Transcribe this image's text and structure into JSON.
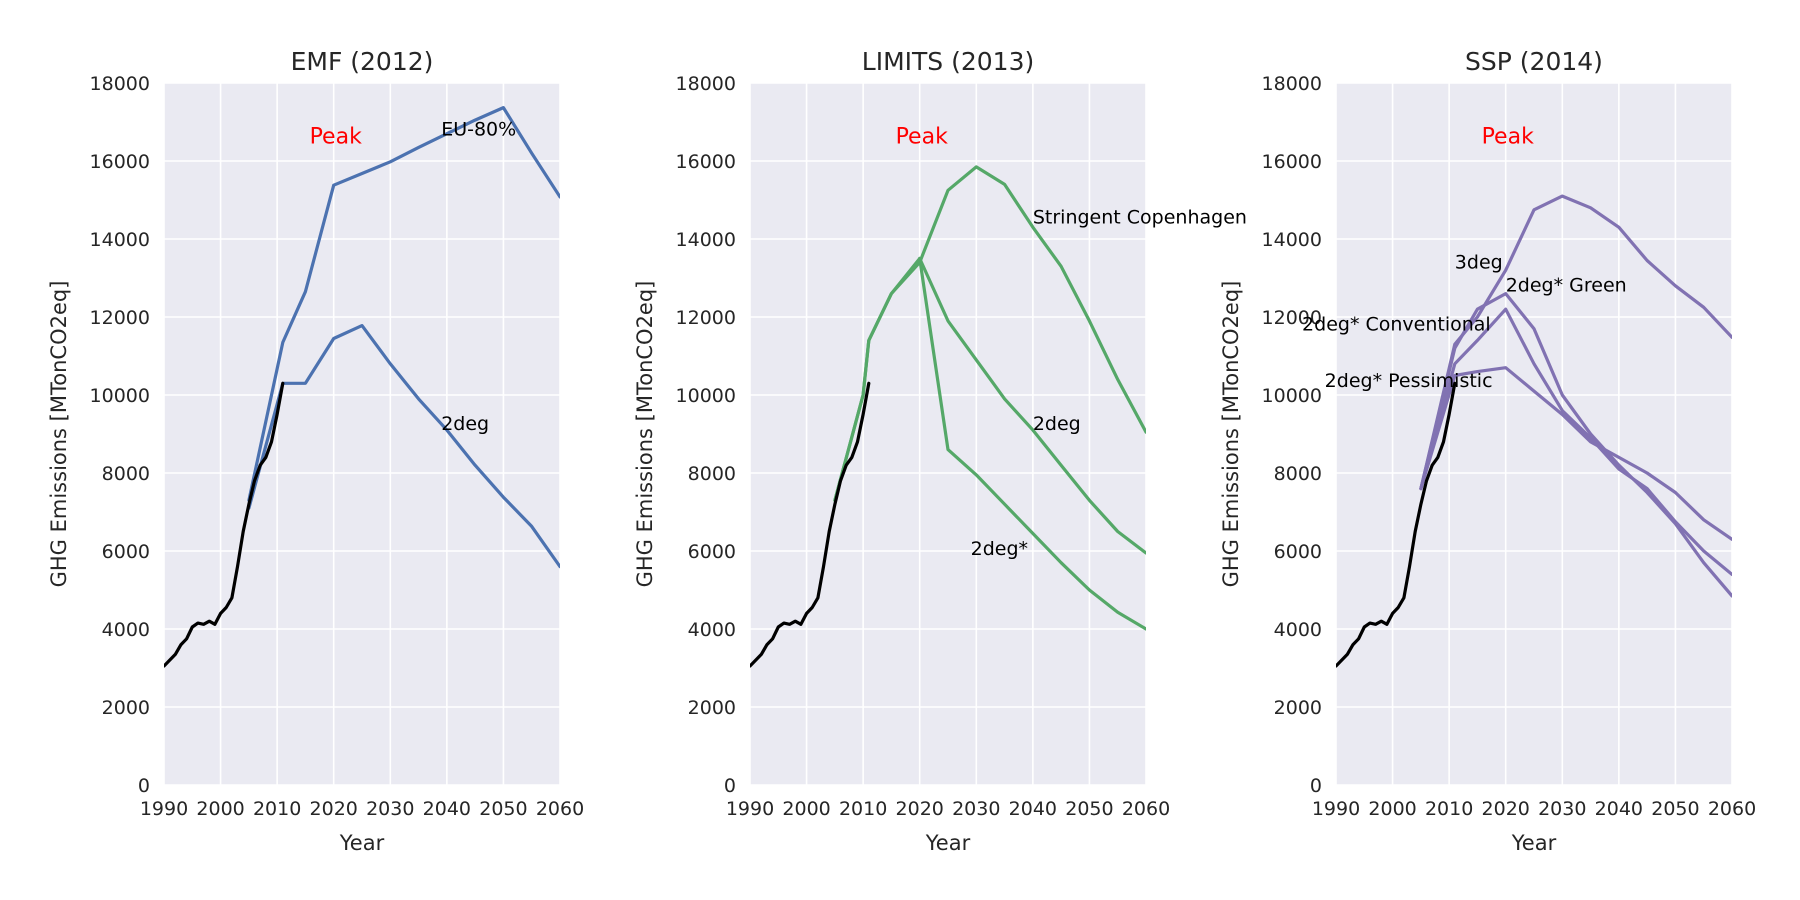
{
  "chart_data": [
    {
      "type": "line",
      "title": "EMF (2012)",
      "xlabel": "Year",
      "ylabel": "GHG Emissions [MTonCO2eq]",
      "xlim": [
        1990,
        2060
      ],
      "ylim": [
        0,
        18000
      ],
      "xticks": [
        "1990",
        "2000",
        "2010",
        "2020",
        "2030",
        "2040",
        "2050",
        "2060"
      ],
      "yticks": [
        "0",
        "2000",
        "4000",
        "6000",
        "8000",
        "10000",
        "12000",
        "14000",
        "16000",
        "18000"
      ],
      "grid": true,
      "color": "#4c72b0",
      "peak_label": "Peak",
      "series": [
        {
          "name": "EU-80%",
          "x": [
            2005,
            2011,
            2015,
            2020,
            2025,
            2030,
            2035,
            2040,
            2045,
            2050,
            2055,
            2060
          ],
          "y": [
            7300,
            11350,
            12650,
            15380,
            15680,
            15980,
            16350,
            16700,
            17050,
            17370,
            16200,
            15080
          ]
        },
        {
          "name": "2deg",
          "x": [
            2005,
            2011,
            2015,
            2020,
            2025,
            2030,
            2035,
            2040,
            2045,
            2050,
            2055,
            2060
          ],
          "y": [
            7100,
            10300,
            10300,
            11450,
            11780,
            10800,
            9900,
            9100,
            8200,
            7380,
            6630,
            5600
          ]
        }
      ],
      "historical": {
        "x": [
          1990,
          1992,
          1993,
          1994,
          1995,
          1996,
          1997,
          1998,
          1999,
          2000,
          2001,
          2002,
          2003,
          2004,
          2005,
          2006,
          2007,
          2008,
          2009,
          2010,
          2011
        ],
        "y": [
          3050,
          3350,
          3600,
          3750,
          4050,
          4150,
          4120,
          4200,
          4120,
          4400,
          4550,
          4800,
          5600,
          6500,
          7200,
          7800,
          8200,
          8400,
          8800,
          9500,
          10300
        ]
      },
      "annotations": [
        {
          "text": "EU-80%",
          "x": 2039,
          "y": 16650
        },
        {
          "text": "2deg",
          "x": 2039,
          "y": 9100
        }
      ]
    },
    {
      "type": "line",
      "title": "LIMITS (2013)",
      "xlabel": "Year",
      "ylabel": "GHG Emissions [MTonCO2eq]",
      "xlim": [
        1990,
        2060
      ],
      "ylim": [
        0,
        18000
      ],
      "xticks": [
        "1990",
        "2000",
        "2010",
        "2020",
        "2030",
        "2040",
        "2050",
        "2060"
      ],
      "yticks": [
        "0",
        "2000",
        "4000",
        "6000",
        "8000",
        "10000",
        "12000",
        "14000",
        "16000",
        "18000"
      ],
      "grid": true,
      "color": "#55a868",
      "peak_label": "Peak",
      "series": [
        {
          "name": "Stringent Copenhagen",
          "x": [
            2005,
            2010,
            2011,
            2015,
            2020,
            2025,
            2030,
            2035,
            2040,
            2045,
            2050,
            2055,
            2060
          ],
          "y": [
            7300,
            10000,
            11400,
            12600,
            13400,
            15250,
            15850,
            15400,
            14300,
            13300,
            11900,
            10400,
            9050
          ]
        },
        {
          "name": "2deg",
          "x": [
            2005,
            2010,
            2011,
            2015,
            2020,
            2025,
            2030,
            2035,
            2040,
            2045,
            2050,
            2055,
            2060
          ],
          "y": [
            7300,
            10000,
            11400,
            12600,
            13500,
            11900,
            10900,
            9900,
            9100,
            8200,
            7300,
            6500,
            5950
          ]
        },
        {
          "name": "2deg*",
          "x": [
            2020,
            2025,
            2030,
            2035,
            2040,
            2045,
            2050,
            2055,
            2060
          ],
          "y": [
            13500,
            8600,
            7950,
            7200,
            6450,
            5700,
            5000,
            4430,
            4000
          ]
        }
      ],
      "historical": {
        "x": [
          1990,
          1992,
          1993,
          1994,
          1995,
          1996,
          1997,
          1998,
          1999,
          2000,
          2001,
          2002,
          2003,
          2004,
          2005,
          2006,
          2007,
          2008,
          2009,
          2010,
          2011
        ],
        "y": [
          3050,
          3350,
          3600,
          3750,
          4050,
          4150,
          4120,
          4200,
          4120,
          4400,
          4550,
          4800,
          5600,
          6500,
          7200,
          7800,
          8200,
          8400,
          8800,
          9500,
          10300
        ]
      },
      "annotations": [
        {
          "text": "Stringent Copenhagen",
          "x": 2040,
          "y": 14400
        },
        {
          "text": "2deg",
          "x": 2040,
          "y": 9100
        },
        {
          "text": "2deg*",
          "x": 2029,
          "y": 5900
        }
      ]
    },
    {
      "type": "line",
      "title": "SSP (2014)",
      "xlabel": "Year",
      "ylabel": "GHG Emissions [MTonCO2eq]",
      "xlim": [
        1990,
        2060
      ],
      "ylim": [
        0,
        18000
      ],
      "xticks": [
        "1990",
        "2000",
        "2010",
        "2020",
        "2030",
        "2040",
        "2050",
        "2060"
      ],
      "yticks": [
        "0",
        "2000",
        "4000",
        "6000",
        "8000",
        "10000",
        "12000",
        "14000",
        "16000",
        "18000"
      ],
      "grid": true,
      "color": "#8172b2",
      "peak_label": "Peak",
      "series": [
        {
          "name": "3deg",
          "x": [
            2005,
            2011,
            2015,
            2020,
            2025,
            2030,
            2035,
            2040,
            2045,
            2050,
            2055,
            2060
          ],
          "y": [
            7600,
            11300,
            12000,
            13200,
            14750,
            15100,
            14800,
            14300,
            13450,
            12800,
            12250,
            11480
          ]
        },
        {
          "name": "2deg* Green",
          "x": [
            2005,
            2011,
            2015,
            2020,
            2025,
            2030,
            2035,
            2040,
            2045,
            2050,
            2055,
            2060
          ],
          "y": [
            7600,
            11200,
            12200,
            12600,
            11700,
            10000,
            9000,
            8200,
            7500,
            6700,
            5700,
            4850
          ]
        },
        {
          "name": "2deg* Conventional",
          "x": [
            2005,
            2011,
            2015,
            2020,
            2025,
            2030,
            2035,
            2040,
            2045,
            2050,
            2055,
            2060
          ],
          "y": [
            7600,
            10800,
            11400,
            12200,
            10800,
            9600,
            8900,
            8100,
            7600,
            6750,
            6000,
            5400
          ]
        },
        {
          "name": "2deg* Pessimistic",
          "x": [
            2005,
            2011,
            2015,
            2020,
            2025,
            2030,
            2035,
            2040,
            2045,
            2050,
            2055,
            2060
          ],
          "y": [
            7600,
            10500,
            10600,
            10700,
            10100,
            9500,
            8800,
            8400,
            8000,
            7500,
            6800,
            6300
          ]
        }
      ],
      "historical": {
        "x": [
          1990,
          1992,
          1993,
          1994,
          1995,
          1996,
          1997,
          1998,
          1999,
          2000,
          2001,
          2002,
          2003,
          2004,
          2005,
          2006,
          2007,
          2008,
          2009,
          2010,
          2011
        ],
        "y": [
          3050,
          3350,
          3600,
          3750,
          4050,
          4150,
          4120,
          4200,
          4120,
          4400,
          4550,
          4800,
          5600,
          6500,
          7200,
          7800,
          8200,
          8400,
          8800,
          9500,
          10300
        ]
      },
      "annotations": [
        {
          "text": "3deg",
          "x": 2011,
          "y": 13250
        },
        {
          "text": "2deg* Green",
          "x": 2020,
          "y": 12650
        },
        {
          "text": "2deg* Conventional",
          "x": 1984,
          "y": 11650
        },
        {
          "text": "2deg* Pessimistic",
          "x": 1988,
          "y": 10200
        }
      ]
    }
  ]
}
